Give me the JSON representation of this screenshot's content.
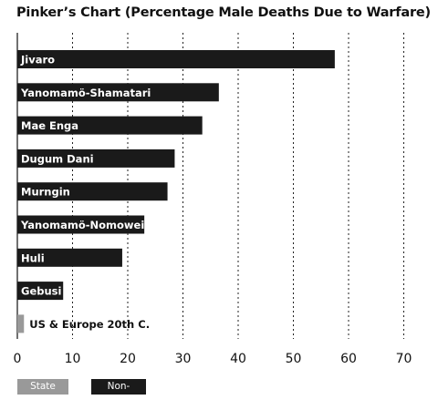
{
  "chart_data": {
    "type": "bar",
    "orientation": "horizontal",
    "title": "Pinker’s Chart (Percentage Male Deaths Due to Warfare)",
    "xlim": [
      0,
      70
    ],
    "xticks": [
      0,
      10,
      20,
      30,
      40,
      50,
      60,
      70
    ],
    "grid": true,
    "categories": [
      "Jivaro",
      "Yanomamö-Shamatari",
      "Mae Enga",
      "Dugum Dani",
      "Murngin",
      "Yanomamö-Nomowei",
      "Huli",
      "Gebusi",
      "US & Europe 20th C."
    ],
    "values": [
      57.5,
      36.5,
      33.5,
      28.5,
      27.2,
      23,
      19,
      8.3,
      1.2
    ],
    "groups": [
      "Non-State",
      "Non-State",
      "Non-State",
      "Non-State",
      "Non-State",
      "Non-State",
      "Non-State",
      "Non-State",
      "State"
    ],
    "legend": {
      "placement": "bottom-left",
      "items": [
        {
          "label": "State",
          "color": "#999999"
        },
        {
          "label": "Non-State",
          "color": "#1a1a1a"
        }
      ]
    },
    "colors": {
      "State": "#999999",
      "Non-State": "#1a1a1a"
    }
  }
}
